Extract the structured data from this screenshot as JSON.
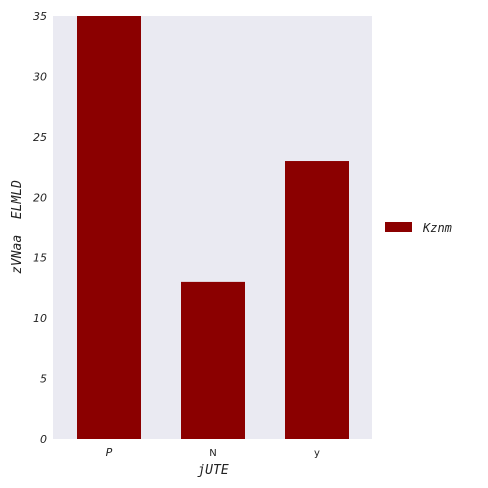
{
  "chart_data": {
    "type": "bar",
    "categories": [
      "P",
      "N",
      "y"
    ],
    "series": [
      {
        "name": "Kznm",
        "values": [
          35,
          13,
          23
        ],
        "color": "#8b0000"
      }
    ],
    "xlabel": "jUTE",
    "ylabel": "zVNaa  ELMLD",
    "ylim": [
      0,
      35
    ],
    "yticks": [
      0,
      5,
      10,
      15,
      20,
      25,
      30,
      35
    ],
    "grid": false,
    "legend_position": "right",
    "plot_background": "#eaeaf2"
  }
}
